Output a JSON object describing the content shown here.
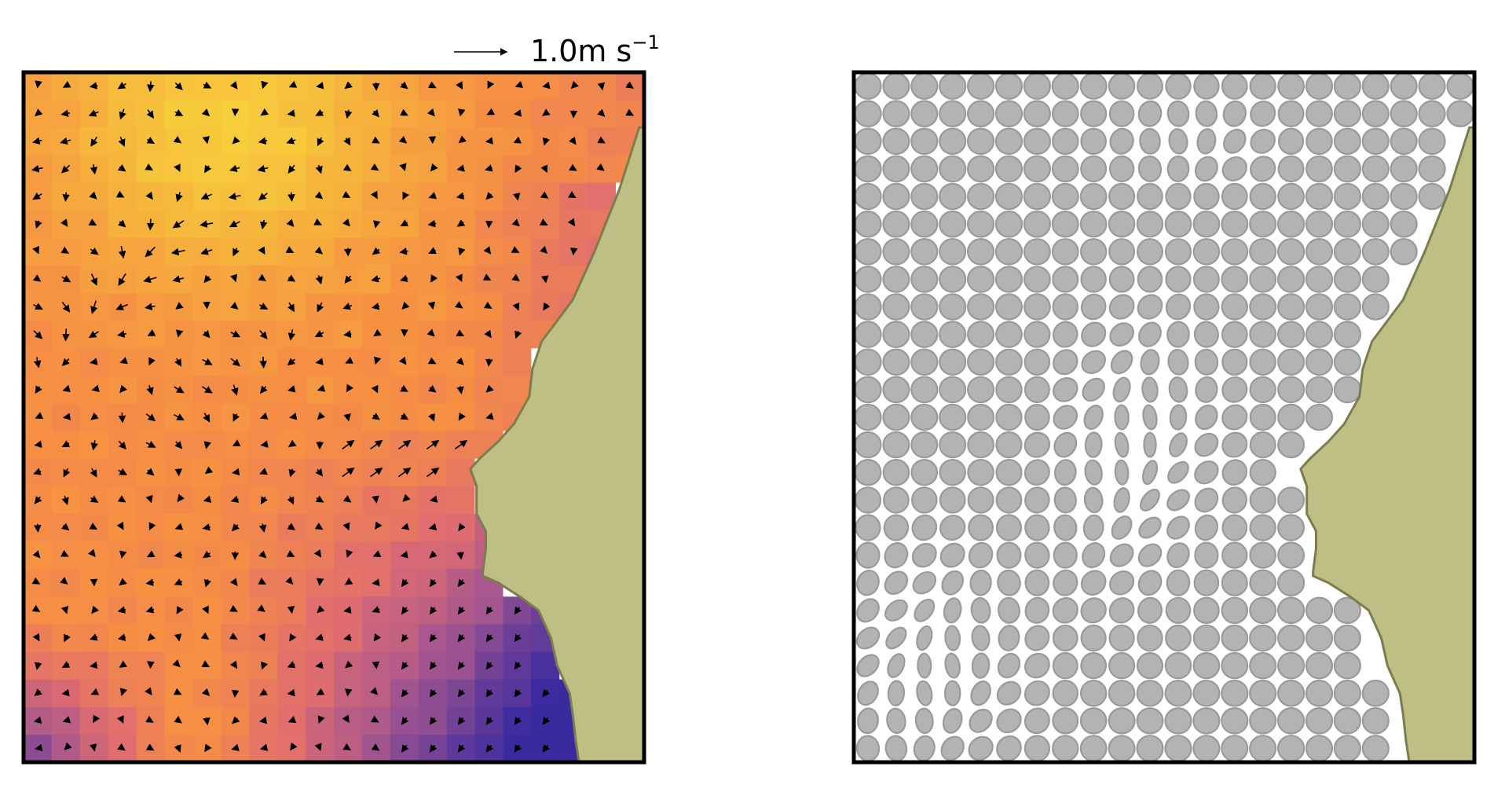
{
  "scale_key": {
    "value_label": "1.0m s",
    "exponent": "−1",
    "reference_speed": 1.0
  },
  "colors": {
    "coast": "#bdbf84",
    "coast_edge": "#7b7d4c",
    "ellipse_fill": "#b3b3b3",
    "ellipse_edge": "#9a9a9a",
    "frame": "#000000",
    "arrow": "#000000",
    "colormap": [
      "#3a2aa0",
      "#6a3f98",
      "#a8578f",
      "#e06d6f",
      "#f68f44",
      "#f6b43c",
      "#f7d33b"
    ]
  },
  "panels": [
    {
      "name": "velocity-field",
      "kind": "colored grid with vector arrows"
    },
    {
      "name": "strain-ellipses",
      "kind": "grid of deformation ellipses"
    }
  ]
}
